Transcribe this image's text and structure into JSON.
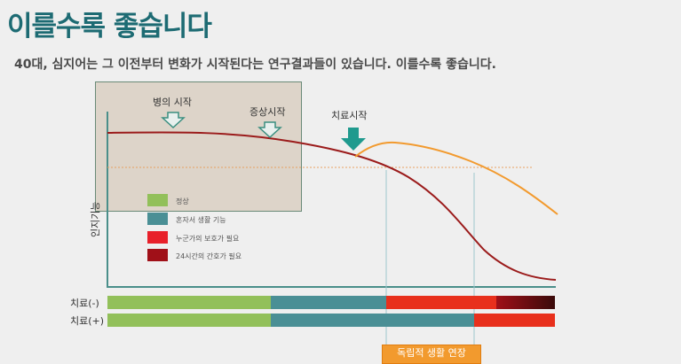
{
  "title": "이를수록 좋습니다",
  "subtitle": "40대, 심지어는 그 이전부터 변화가 시작된다는 연구결과들이 있습니다. 이를수록 좋습니다.",
  "annotations": {
    "disease_onset": "병의 시작",
    "symptom_onset": "증상시작",
    "treatment_start": "치료시작"
  },
  "y_axis_label": "인지기능",
  "legend": [
    {
      "label": "정상",
      "color": "#92c05a"
    },
    {
      "label": "혼자서 생활 기능",
      "color": "#4a8f95"
    },
    {
      "label": "누군가의 보호가 필요",
      "color": "#e8202a"
    },
    {
      "label": "24시간의 간호가 필요",
      "color": "#a01018"
    }
  ],
  "rows": [
    {
      "label": "치료(-)"
    },
    {
      "label": "치료(+)"
    }
  ],
  "bottom_tag": "독립적 생활 연장",
  "colors": {
    "title": "#1d6b73",
    "untreated_curve": "#9b1b1b",
    "treated_curve": "#f29a2e",
    "arrow_teal": "#1f9a8e"
  }
}
